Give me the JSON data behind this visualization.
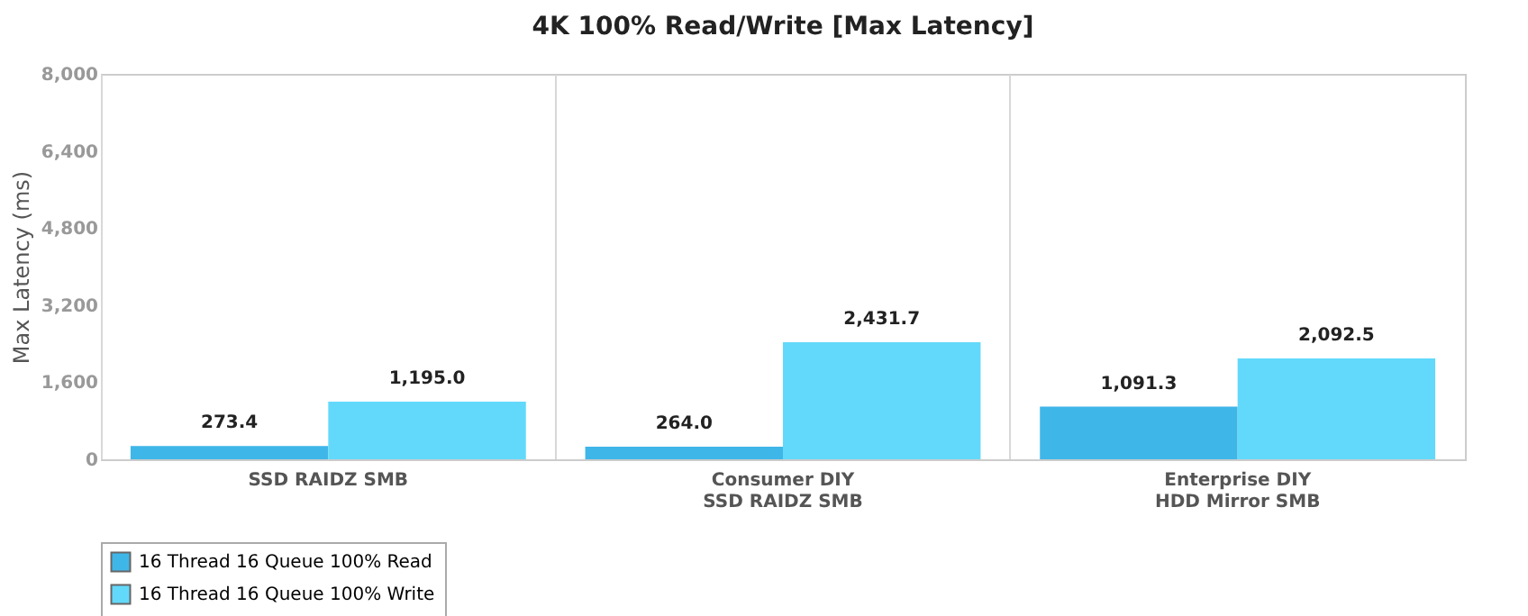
{
  "chart_data": {
    "type": "bar",
    "title": "4K 100% Read/Write [Max Latency]",
    "ylabel": "Max Latency  (ms)",
    "categories": [
      "SSD RAIDZ SMB",
      "Consumer DIY\nSSD RAIDZ SMB",
      "Enterprise DIY\nHDD Mirror SMB"
    ],
    "series": [
      {
        "name": "16 Thread 16 Queue 100% Read",
        "color": "#3fb6e8",
        "values": [
          273.4,
          264.0,
          1091.3
        ],
        "value_labels": [
          "273.4",
          "264.0",
          "1,091.3"
        ]
      },
      {
        "name": "16 Thread 16 Queue 100% Write",
        "color": "#62d9fb",
        "values": [
          1195.0,
          2431.7,
          2092.5
        ],
        "value_labels": [
          "1,195.0",
          "2,431.7",
          "2,092.5"
        ]
      }
    ],
    "ylim": [
      0,
      8000
    ],
    "yticks": [
      {
        "value": 0,
        "label": "0"
      },
      {
        "value": 1600,
        "label": "1,600"
      },
      {
        "value": 3200,
        "label": "3,200"
      },
      {
        "value": 4800,
        "label": "4,800"
      },
      {
        "value": 6400,
        "label": "6,400"
      },
      {
        "value": 8000,
        "label": "8,000"
      }
    ],
    "grid": "x",
    "legend": "bottom"
  }
}
